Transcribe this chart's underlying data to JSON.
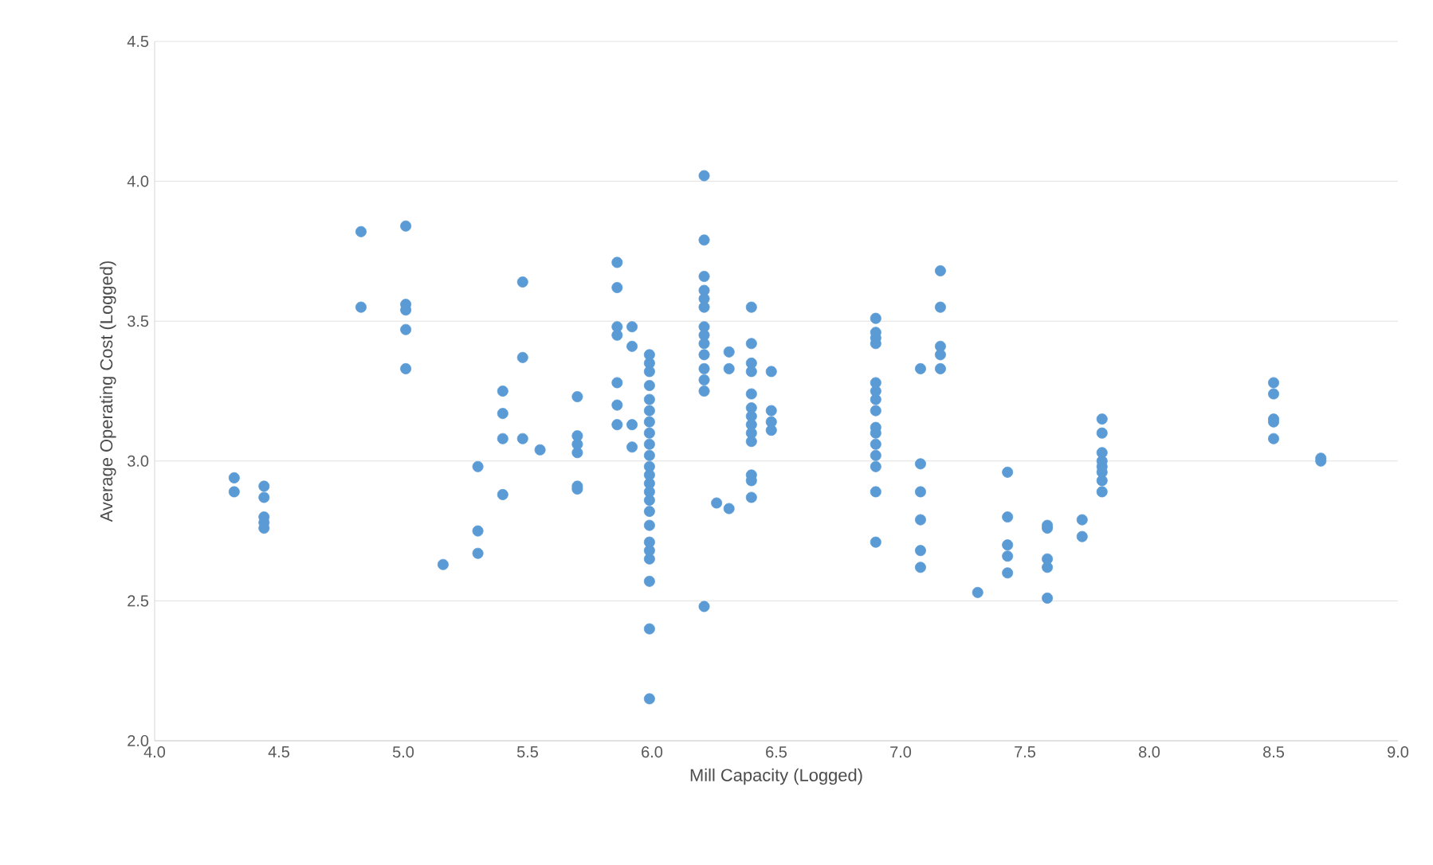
{
  "chart_data": {
    "type": "scatter",
    "xlabel": "Mill Capacity (Logged)",
    "ylabel": "Average Operating Cost (Logged)",
    "xlim": [
      4.0,
      9.0
    ],
    "ylim": [
      2.0,
      4.5
    ],
    "xticks": [
      {
        "value": 4,
        "label": "4.0"
      },
      {
        "value": 4.5,
        "label": "4.5"
      },
      {
        "value": 5,
        "label": "5.0"
      },
      {
        "value": 5.5,
        "label": "5.5"
      },
      {
        "value": 6,
        "label": "6.0"
      },
      {
        "value": 6.5,
        "label": "6.5"
      },
      {
        "value": 7,
        "label": "7.0"
      },
      {
        "value": 7.5,
        "label": "7.5"
      },
      {
        "value": 8,
        "label": "8.0"
      },
      {
        "value": 8.5,
        "label": "8.5"
      },
      {
        "value": 9,
        "label": "9.0"
      }
    ],
    "yticks": [
      {
        "value": 2,
        "label": "2.0"
      },
      {
        "value": 2.5,
        "label": "2.5"
      },
      {
        "value": 3,
        "label": "3.0"
      },
      {
        "value": 3.5,
        "label": "3.5"
      },
      {
        "value": 4,
        "label": "4.0"
      },
      {
        "value": 4.5,
        "label": "4.5"
      }
    ],
    "grid": "y",
    "marker": "circle",
    "series": [
      {
        "color": "#5b9bd5",
        "x": [
          4.32,
          4.32,
          4.44,
          4.44,
          4.44,
          4.44,
          4.44,
          4.83,
          4.83,
          5.01,
          5.01,
          5.01,
          5.01,
          5.01,
          5.16,
          5.3,
          5.3,
          5.3,
          5.4,
          5.4,
          5.4,
          5.4,
          5.48,
          5.48,
          5.48,
          5.55,
          5.7,
          5.7,
          5.7,
          5.7,
          5.7,
          5.7,
          5.86,
          5.86,
          5.86,
          5.86,
          5.86,
          5.86,
          5.86,
          5.92,
          5.92,
          5.92,
          5.92,
          5.99,
          5.99,
          5.99,
          5.99,
          5.99,
          5.99,
          5.99,
          5.99,
          5.99,
          5.99,
          5.99,
          5.99,
          5.99,
          5.99,
          5.99,
          5.99,
          5.99,
          5.99,
          5.99,
          5.99,
          5.99,
          5.99,
          5.99,
          6.21,
          6.21,
          6.21,
          6.21,
          6.21,
          6.21,
          6.21,
          6.21,
          6.21,
          6.21,
          6.21,
          6.21,
          6.21,
          6.21,
          6.26,
          6.31,
          6.31,
          6.31,
          6.4,
          6.4,
          6.4,
          6.4,
          6.4,
          6.4,
          6.4,
          6.4,
          6.4,
          6.4,
          6.4,
          6.4,
          6.4,
          6.48,
          6.48,
          6.48,
          6.48,
          6.9,
          6.9,
          6.9,
          6.9,
          6.9,
          6.9,
          6.9,
          6.9,
          6.9,
          6.9,
          6.9,
          6.9,
          6.9,
          6.9,
          6.9,
          7.08,
          7.08,
          7.08,
          7.08,
          7.08,
          7.08,
          7.16,
          7.16,
          7.16,
          7.16,
          7.16,
          7.31,
          7.43,
          7.43,
          7.43,
          7.43,
          7.43,
          7.59,
          7.59,
          7.59,
          7.59,
          7.59,
          7.73,
          7.73,
          7.81,
          7.81,
          7.81,
          7.81,
          7.81,
          7.81,
          7.81,
          7.81,
          8.5,
          8.5,
          8.5,
          8.5,
          8.5,
          8.69,
          8.69
        ],
        "values": [
          2.94,
          2.89,
          2.91,
          2.87,
          2.8,
          2.78,
          2.76,
          3.82,
          3.55,
          3.84,
          3.56,
          3.54,
          3.47,
          3.33,
          2.63,
          2.98,
          2.75,
          2.67,
          3.25,
          3.17,
          3.08,
          2.88,
          3.64,
          3.37,
          3.08,
          3.04,
          3.23,
          3.09,
          3.06,
          3.03,
          2.91,
          2.9,
          3.71,
          3.62,
          3.48,
          3.45,
          3.28,
          3.2,
          3.13,
          3.48,
          3.41,
          3.13,
          3.05,
          3.38,
          3.35,
          3.32,
          3.27,
          3.22,
          3.18,
          3.14,
          3.1,
          3.06,
          3.02,
          2.98,
          2.95,
          2.92,
          2.89,
          2.86,
          2.82,
          2.77,
          2.71,
          2.68,
          2.65,
          2.57,
          2.4,
          2.15,
          4.02,
          3.79,
          3.66,
          3.61,
          3.58,
          3.55,
          3.48,
          3.45,
          3.42,
          3.38,
          3.33,
          3.29,
          3.25,
          2.48,
          2.85,
          3.39,
          3.33,
          2.83,
          3.55,
          3.42,
          3.35,
          3.32,
          3.24,
          3.19,
          3.16,
          3.13,
          3.1,
          3.07,
          2.95,
          2.93,
          2.87,
          3.32,
          3.18,
          3.14,
          3.11,
          3.51,
          3.46,
          3.44,
          3.42,
          3.28,
          3.25,
          3.22,
          3.18,
          3.12,
          3.1,
          3.06,
          3.02,
          2.98,
          2.89,
          2.71,
          3.33,
          2.99,
          2.89,
          2.79,
          2.68,
          2.62,
          3.68,
          3.55,
          3.41,
          3.38,
          3.33,
          2.53,
          2.96,
          2.8,
          2.7,
          2.66,
          2.6,
          2.77,
          2.76,
          2.65,
          2.62,
          2.51,
          2.79,
          2.73,
          3.15,
          3.1,
          3.03,
          3.0,
          2.98,
          2.96,
          2.93,
          2.89,
          3.28,
          3.24,
          3.15,
          3.14,
          3.08,
          3.01,
          3.0
        ]
      }
    ]
  }
}
